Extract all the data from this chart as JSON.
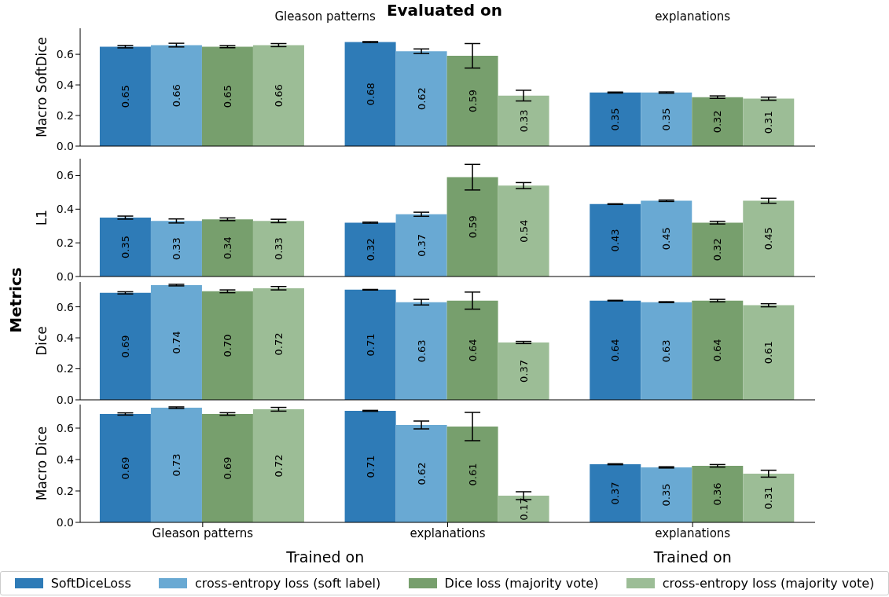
{
  "chart_data": [
    {
      "type": "bar",
      "ylabel": "Macro SoftDice",
      "categories": [
        null,
        null,
        null
      ],
      "annotations": [
        "Evaluated on",
        "Metrics",
        "Gleason patterns",
        "explanations"
      ],
      "legend": "bottom",
      "tick_labels": "y",
      "data_labels": true,
      "ylim": [
        0,
        0.77
      ],
      "yticks": [
        {
          "value": 0,
          "label": "0.0"
        },
        {
          "value": 0.2,
          "label": "0.2"
        },
        {
          "value": 0.4,
          "label": "0.4"
        },
        {
          "value": 0.6,
          "label": "0.6"
        }
      ],
      "series": [
        {
          "name": "SoftDiceLoss",
          "color": "#2e7bb7",
          "values": [
            0.65,
            0.68,
            0.35
          ],
          "errors": [
            0.008,
            0.003,
            0.003
          ]
        },
        {
          "name": "cross-entropy loss (soft label)",
          "color": "#69a9d3",
          "values": [
            0.66,
            0.62,
            0.35
          ],
          "errors": [
            0.012,
            0.015,
            0.004
          ]
        },
        {
          "name": "Dice loss (majority vote)",
          "color": "#779f6d",
          "values": [
            0.65,
            0.59,
            0.32
          ],
          "errors": [
            0.007,
            0.08,
            0.008
          ]
        },
        {
          "name": "cross-entropy loss (majority vote)",
          "color": "#9cbd96",
          "values": [
            0.66,
            0.33,
            0.31
          ],
          "errors": [
            0.01,
            0.035,
            0.01
          ]
        }
      ]
    },
    {
      "type": "bar",
      "ylabel": "L1",
      "categories": [
        null,
        null,
        null
      ],
      "tick_labels": "y",
      "data_labels": true,
      "ylim": [
        0,
        0.7
      ],
      "yticks": [
        {
          "value": 0,
          "label": "0.0"
        },
        {
          "value": 0.2,
          "label": "0.2"
        },
        {
          "value": 0.4,
          "label": "0.4"
        },
        {
          "value": 0.6,
          "label": "0.6"
        }
      ],
      "series": [
        {
          "color": "#2e7bb7",
          "values": [
            0.35,
            0.32,
            0.43
          ],
          "errors": [
            0.009,
            0.003,
            0.002
          ]
        },
        {
          "color": "#69a9d3",
          "values": [
            0.33,
            0.37,
            0.45
          ],
          "errors": [
            0.012,
            0.012,
            0.004
          ]
        },
        {
          "color": "#779f6d",
          "values": [
            0.34,
            0.59,
            0.32
          ],
          "errors": [
            0.008,
            0.076,
            0.008
          ]
        },
        {
          "color": "#9cbd96",
          "values": [
            0.33,
            0.54,
            0.45
          ],
          "errors": [
            0.01,
            0.018,
            0.015
          ]
        }
      ]
    },
    {
      "type": "bar",
      "ylabel": "Dice",
      "categories": [
        null,
        null,
        null
      ],
      "tick_labels": "y",
      "data_labels": true,
      "ylim": [
        0,
        0.76
      ],
      "yticks": [
        {
          "value": 0,
          "label": "0.0"
        },
        {
          "value": 0.2,
          "label": "0.2"
        },
        {
          "value": 0.4,
          "label": "0.4"
        },
        {
          "value": 0.6,
          "label": "0.6"
        }
      ],
      "series": [
        {
          "color": "#2e7bb7",
          "values": [
            0.69,
            0.71,
            0.64
          ],
          "errors": [
            0.007,
            0.002,
            0.002
          ],
          "value_labels": [
            "0.69",
            "0.71",
            "0.64"
          ]
        },
        {
          "color": "#69a9d3",
          "values": [
            0.74,
            0.63,
            0.63
          ],
          "errors": [
            0.005,
            0.018,
            0.003
          ],
          "value_labels": [
            "0.74",
            "0.63",
            "0.63"
          ]
        },
        {
          "color": "#779f6d",
          "values": [
            0.7,
            0.64,
            0.64
          ],
          "errors": [
            0.009,
            0.055,
            0.008
          ],
          "value_labels": [
            "0.70",
            "0.64",
            "0.64"
          ]
        },
        {
          "color": "#9cbd96",
          "values": [
            0.72,
            0.37,
            0.61
          ],
          "errors": [
            0.011,
            0.007,
            0.01
          ],
          "value_labels": [
            "0.72",
            "0.37",
            "0.61"
          ]
        }
      ]
    },
    {
      "type": "bar",
      "ylabel": "Macro Dice",
      "xlabel": "Trained on",
      "annotations": [
        "Trained on"
      ],
      "categories": [
        "Gleason patterns",
        "explanations",
        "explanations"
      ],
      "data_labels": true,
      "ylim": [
        0,
        0.75
      ],
      "yticks": [
        {
          "value": 0,
          "label": "0.0"
        },
        {
          "value": 0.2,
          "label": "0.2"
        },
        {
          "value": 0.4,
          "label": "0.4"
        },
        {
          "value": 0.6,
          "label": "0.6"
        }
      ],
      "series": [
        {
          "color": "#2e7bb7",
          "values": [
            0.69,
            0.71,
            0.37
          ],
          "errors": [
            0.007,
            0.003,
            0.003
          ]
        },
        {
          "color": "#69a9d3",
          "values": [
            0.73,
            0.62,
            0.35
          ],
          "errors": [
            0.005,
            0.025,
            0.004
          ]
        },
        {
          "color": "#779f6d",
          "values": [
            0.69,
            0.61,
            0.36
          ],
          "errors": [
            0.008,
            0.09,
            0.008
          ]
        },
        {
          "color": "#9cbd96",
          "values": [
            0.72,
            0.17,
            0.31
          ],
          "errors": [
            0.012,
            0.025,
            0.022
          ]
        }
      ]
    }
  ]
}
